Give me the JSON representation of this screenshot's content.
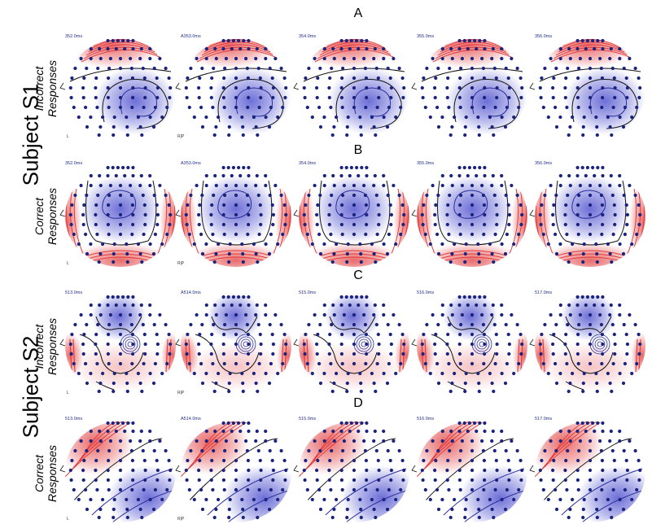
{
  "subjects": [
    {
      "label": "Subject S1"
    },
    {
      "label": "Subject S2"
    }
  ],
  "rows": [
    {
      "letter": "A",
      "condition": [
        "Incorrect",
        "Responses"
      ],
      "pattern": "s1_incorrect",
      "times": [
        "352.0ms",
        "A353.0ms",
        "354.0ms",
        "355.0ms",
        "356.0ms"
      ],
      "corner_left": "L",
      "corner_right": "R|P"
    },
    {
      "letter": "B",
      "condition": [
        "Correct",
        "Responses"
      ],
      "pattern": "s1_correct",
      "times": [
        "352.0ms",
        "A353.0ms",
        "354.0ms",
        "355.0ms",
        "356.0ms"
      ],
      "corner_left": "L",
      "corner_right": "R|P"
    },
    {
      "letter": "C",
      "condition": [
        "Incorrect",
        "Responses"
      ],
      "pattern": "s2_incorrect",
      "times": [
        "513.0ms",
        "A514.0ms",
        "515.0ms",
        "516.0ms",
        "517.0ms"
      ],
      "corner_left": "L",
      "corner_right": "R|P"
    },
    {
      "letter": "D",
      "condition": [
        "Correct",
        "Responses"
      ],
      "pattern": "s2_correct",
      "times": [
        "513.0ms",
        "A514.0ms",
        "515.0ms",
        "516.0ms",
        "517.0ms"
      ],
      "corner_left": "L",
      "corner_right": "R|P"
    }
  ],
  "colors": {
    "positive": "#e23a3a",
    "negative": "#3d3fc9",
    "electrode": "#1a237e",
    "contour": "#111111"
  }
}
